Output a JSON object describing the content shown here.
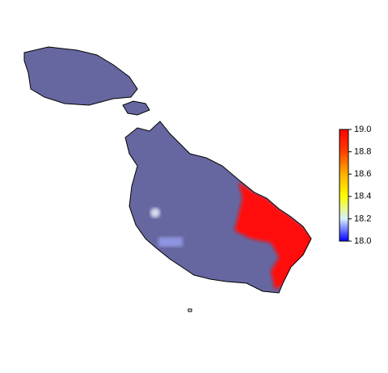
{
  "colorbar": {
    "lim": [
      18,
      19
    ],
    "ticks": [
      {
        "value": 18,
        "label": "18.0"
      },
      {
        "value": 18.2,
        "label": "18.2"
      },
      {
        "value": 18.4,
        "label": "18.4"
      },
      {
        "value": 18.6,
        "label": "18.6"
      },
      {
        "value": 18.8,
        "label": "18.8"
      },
      {
        "value": 19,
        "label": "19.0"
      }
    ]
  }
}
